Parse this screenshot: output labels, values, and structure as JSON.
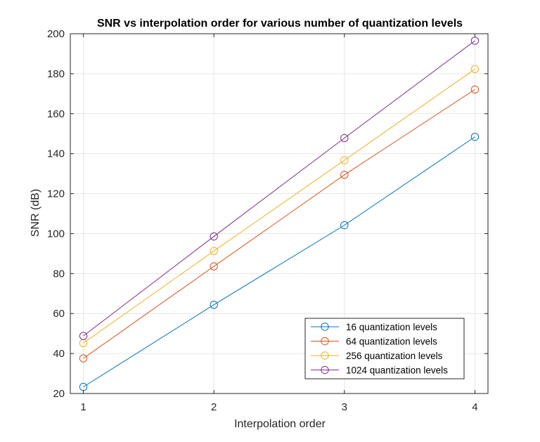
{
  "chart_data": {
    "type": "line",
    "title": "SNR vs interpolation order for various number of quantization levels",
    "xlabel": "Interpolation order",
    "ylabel": "SNR (dB)",
    "x": [
      1,
      2,
      3,
      4
    ],
    "xlim": [
      0.9,
      4.1
    ],
    "ylim": [
      20,
      200
    ],
    "xticks": [
      "1",
      "2",
      "3",
      "4"
    ],
    "yticks": [
      "20",
      "40",
      "60",
      "80",
      "100",
      "120",
      "140",
      "160",
      "180",
      "200"
    ],
    "grid": true,
    "legend_position": "bottom-right",
    "marker": "circle",
    "series": [
      {
        "name": "16 quantization levels",
        "color": "#0072BD",
        "values": [
          23.3,
          64.4,
          104.2,
          148.4
        ]
      },
      {
        "name": "64 quantization levels",
        "color": "#D95319",
        "values": [
          37.6,
          83.6,
          129.4,
          172.1
        ]
      },
      {
        "name": "256 quantization levels",
        "color": "#EDB120",
        "values": [
          45.2,
          91.3,
          136.7,
          182.3
        ]
      },
      {
        "name": "1024 quantization levels",
        "color": "#7E2F8E",
        "values": [
          48.8,
          98.6,
          147.8,
          196.5
        ]
      }
    ]
  }
}
